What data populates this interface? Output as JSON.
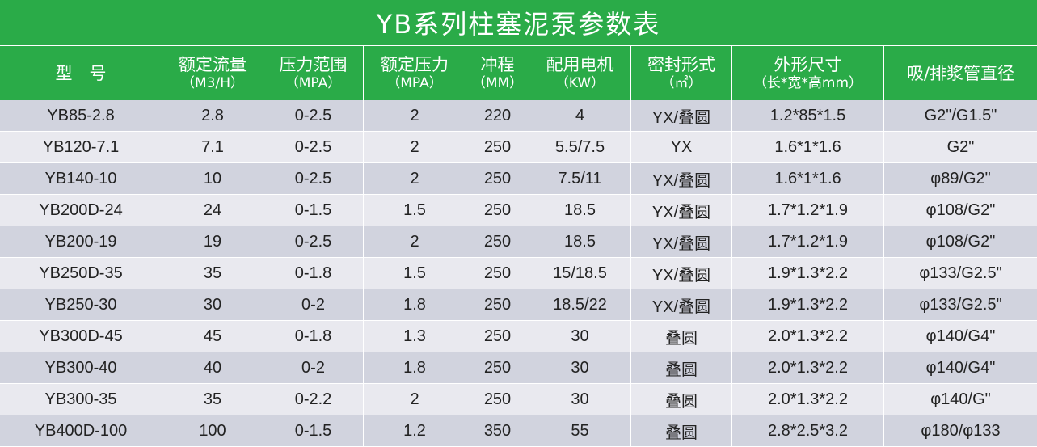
{
  "title": "YB系列柱塞泥泵参数表",
  "headers": [
    {
      "label": "型　号",
      "sub": ""
    },
    {
      "label": "额定流量",
      "sub": "（M3/H）"
    },
    {
      "label": "压力范围",
      "sub": "（MPA）"
    },
    {
      "label": "额定压力",
      "sub": "（MPA）"
    },
    {
      "label": "冲程",
      "sub": "（MM）"
    },
    {
      "label": "配用电机",
      "sub": "（KW）"
    },
    {
      "label": "密封形式",
      "sub": "（㎡）"
    },
    {
      "label": "外形尺寸",
      "sub": "（长*宽*高mm）"
    },
    {
      "label": "吸/排浆管直径",
      "sub": ""
    }
  ],
  "rows": [
    [
      "YB85-2.8",
      "2.8",
      "0-2.5",
      "2",
      "220",
      "4",
      "YX/叠圆",
      "1.2*85*1.5",
      "G2\"/G1.5\""
    ],
    [
      "YB120-7.1",
      "7.1",
      "0-2.5",
      "2",
      "250",
      "5.5/7.5",
      "YX",
      "1.6*1*1.6",
      "G2\""
    ],
    [
      "YB140-10",
      "10",
      "0-2.5",
      "2",
      "250",
      "7.5/11",
      "YX/叠圆",
      "1.6*1*1.6",
      "φ89/G2\""
    ],
    [
      "YB200D-24",
      "24",
      "0-1.5",
      "1.5",
      "250",
      "18.5",
      "YX/叠圆",
      "1.7*1.2*1.9",
      "φ108/G2\""
    ],
    [
      "YB200-19",
      "19",
      "0-2.5",
      "2",
      "250",
      "18.5",
      "YX/叠圆",
      "1.7*1.2*1.9",
      "φ108/G2\""
    ],
    [
      "YB250D-35",
      "35",
      "0-1.8",
      "1.5",
      "250",
      "15/18.5",
      "YX/叠圆",
      "1.9*1.3*2.2",
      "φ133/G2.5\""
    ],
    [
      "YB250-30",
      "30",
      "0-2",
      "1.8",
      "250",
      "18.5/22",
      "YX/叠圆",
      "1.9*1.3*2.2",
      "φ133/G2.5\""
    ],
    [
      "YB300D-45",
      "45",
      "0-1.8",
      "1.3",
      "250",
      "30",
      "叠圆",
      "2.0*1.3*2.2",
      "φ140/G4\""
    ],
    [
      "YB300-40",
      "40",
      "0-2",
      "1.8",
      "250",
      "30",
      "叠圆",
      "2.0*1.3*2.2",
      "φ140/G4\""
    ],
    [
      "YB300-35",
      "35",
      "0-2.2",
      "2",
      "250",
      "30",
      "叠圆",
      "2.0*1.3*2.2",
      "φ140/G\""
    ],
    [
      "YB400D-100",
      "100",
      "0-1.5",
      "1.2",
      "350",
      "55",
      "叠圆",
      "2.8*2.5*3.2",
      "φ180/φ133"
    ]
  ],
  "colors": {
    "header_bg": "#2aab48",
    "row_odd": "#d1d3de",
    "row_even": "#e9e9ef"
  }
}
